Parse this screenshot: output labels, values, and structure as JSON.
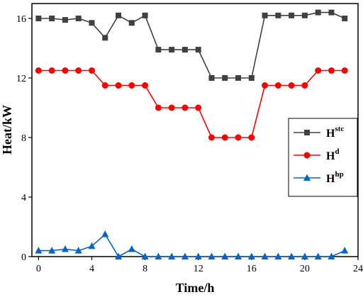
{
  "chart_data": {
    "type": "line",
    "xlabel": "Time/h",
    "ylabel": "Heat/kW",
    "xlim": [
      -0.5,
      24
    ],
    "ylim": [
      0,
      17
    ],
    "xticks": [
      0,
      4,
      8,
      12,
      16,
      20,
      24
    ],
    "yticks": [
      0,
      4,
      8,
      12,
      16
    ],
    "grid": false,
    "legend_position": "right-middle",
    "x": [
      0,
      1,
      2,
      3,
      4,
      5,
      6,
      7,
      8,
      9,
      10,
      11,
      12,
      13,
      14,
      15,
      16,
      17,
      18,
      19,
      20,
      21,
      22,
      23
    ],
    "series": [
      {
        "name": "H",
        "sup": "stc",
        "color": "#404040",
        "marker": "square",
        "values": [
          16.0,
          16.0,
          15.9,
          16.0,
          15.7,
          14.7,
          16.2,
          15.7,
          16.2,
          13.9,
          13.9,
          13.9,
          13.9,
          12.0,
          12.0,
          12.0,
          12.0,
          16.2,
          16.2,
          16.2,
          16.2,
          16.4,
          16.4,
          16.0
        ]
      },
      {
        "name": "H",
        "sup": "d",
        "color": "#ff0000",
        "marker": "circle",
        "values": [
          12.5,
          12.5,
          12.5,
          12.5,
          12.5,
          11.5,
          11.5,
          11.5,
          11.5,
          10.0,
          10.0,
          10.0,
          10.0,
          8.0,
          8.0,
          8.0,
          8.0,
          11.5,
          11.5,
          11.5,
          11.5,
          12.5,
          12.5,
          12.5
        ]
      },
      {
        "name": "H",
        "sup": "hp",
        "color": "#0066cc",
        "marker": "triangle",
        "values": [
          0.4,
          0.4,
          0.5,
          0.4,
          0.7,
          1.5,
          0.0,
          0.5,
          0.0,
          0.0,
          0.0,
          0.0,
          0.0,
          0.0,
          0.0,
          0.0,
          0.0,
          0.0,
          0.0,
          0.0,
          0.0,
          0.0,
          0.0,
          0.4
        ]
      }
    ]
  }
}
